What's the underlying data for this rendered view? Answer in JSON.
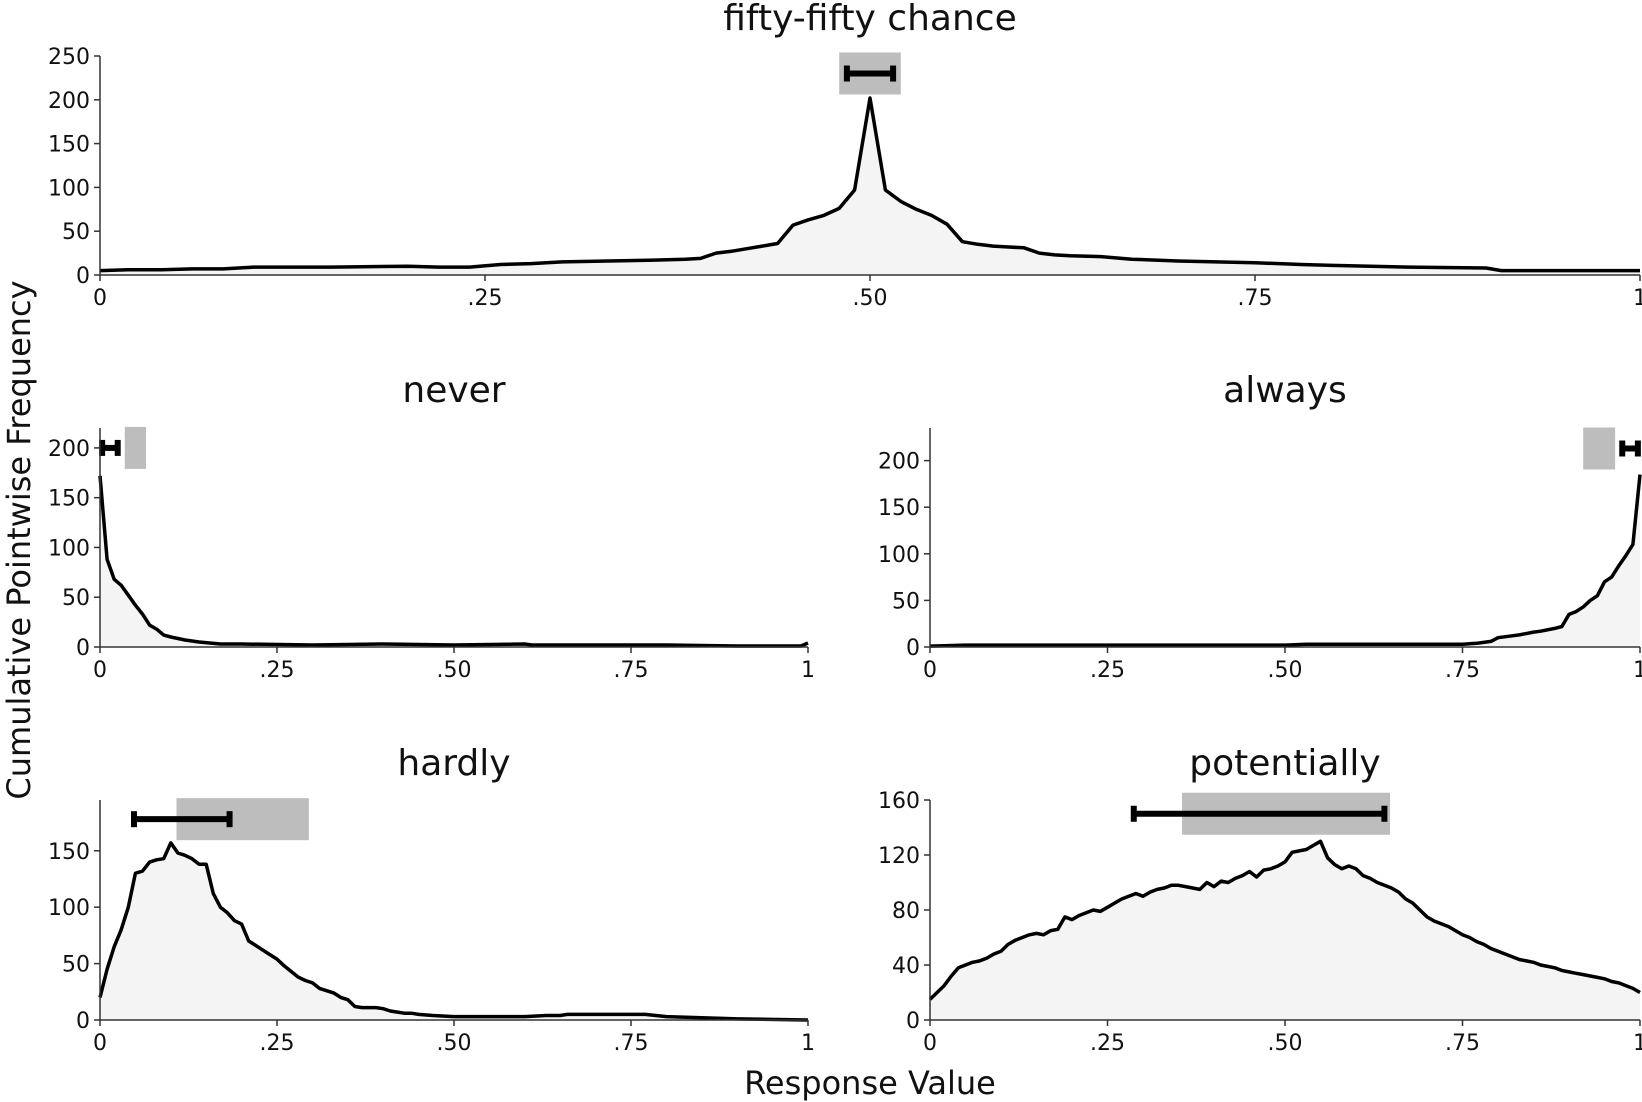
{
  "figure": {
    "ylabel": "Cumulative Pointwise Frequency",
    "xlabel": "Response Value"
  },
  "chart_data": [
    {
      "type": "area",
      "title": "fifty-fifty chance",
      "xlim": [
        0,
        1
      ],
      "ylim": [
        0,
        250
      ],
      "x_ticks": [
        0,
        0.25,
        0.5,
        0.75,
        1
      ],
      "x_tick_labels": [
        "0",
        ".25",
        ".50",
        ".75",
        "1"
      ],
      "y_ticks": [
        0,
        50,
        100,
        150,
        200,
        250
      ],
      "y_tick_labels": [
        "0",
        "50",
        "100",
        "150",
        "200",
        "250"
      ],
      "interval_band": [
        0.48,
        0.52
      ],
      "interval_bar": [
        0.485,
        0.515
      ],
      "interval_level": 230,
      "points": [
        [
          0,
          5
        ],
        [
          0.02,
          6
        ],
        [
          0.04,
          6
        ],
        [
          0.06,
          7
        ],
        [
          0.08,
          7
        ],
        [
          0.1,
          9
        ],
        [
          0.15,
          9
        ],
        [
          0.2,
          10
        ],
        [
          0.22,
          9
        ],
        [
          0.24,
          9
        ],
        [
          0.26,
          12
        ],
        [
          0.28,
          13
        ],
        [
          0.3,
          15
        ],
        [
          0.33,
          16
        ],
        [
          0.36,
          17
        ],
        [
          0.38,
          18
        ],
        [
          0.39,
          19
        ],
        [
          0.4,
          25
        ],
        [
          0.41,
          27
        ],
        [
          0.42,
          30
        ],
        [
          0.43,
          33
        ],
        [
          0.44,
          36
        ],
        [
          0.45,
          57
        ],
        [
          0.46,
          63
        ],
        [
          0.47,
          68
        ],
        [
          0.48,
          76
        ],
        [
          0.49,
          97
        ],
        [
          0.5,
          202
        ],
        [
          0.51,
          97
        ],
        [
          0.52,
          84
        ],
        [
          0.53,
          75
        ],
        [
          0.54,
          68
        ],
        [
          0.55,
          58
        ],
        [
          0.56,
          38
        ],
        [
          0.57,
          35
        ],
        [
          0.58,
          33
        ],
        [
          0.59,
          32
        ],
        [
          0.6,
          31
        ],
        [
          0.61,
          25
        ],
        [
          0.62,
          23
        ],
        [
          0.63,
          22
        ],
        [
          0.65,
          21
        ],
        [
          0.67,
          18
        ],
        [
          0.7,
          16
        ],
        [
          0.75,
          14
        ],
        [
          0.78,
          12
        ],
        [
          0.8,
          11
        ],
        [
          0.85,
          9
        ],
        [
          0.9,
          8
        ],
        [
          0.91,
          5
        ],
        [
          0.95,
          5
        ],
        [
          1,
          5
        ]
      ]
    },
    {
      "type": "area",
      "title": "never",
      "xlim": [
        0,
        1
      ],
      "ylim": [
        0,
        220
      ],
      "x_ticks": [
        0,
        0.25,
        0.5,
        0.75,
        1
      ],
      "x_tick_labels": [
        "0",
        ".25",
        ".50",
        ".75",
        "1"
      ],
      "y_ticks": [
        0,
        50,
        100,
        150,
        200
      ],
      "y_tick_labels": [
        "0",
        "50",
        "100",
        "150",
        "200"
      ],
      "interval_band": [
        0.035,
        0.065
      ],
      "interval_bar": [
        0.003,
        0.025
      ],
      "interval_level": 200,
      "points": [
        [
          0,
          172
        ],
        [
          0.01,
          88
        ],
        [
          0.02,
          68
        ],
        [
          0.03,
          62
        ],
        [
          0.04,
          52
        ],
        [
          0.05,
          42
        ],
        [
          0.06,
          33
        ],
        [
          0.07,
          22
        ],
        [
          0.08,
          18
        ],
        [
          0.09,
          12
        ],
        [
          0.1,
          10
        ],
        [
          0.12,
          7
        ],
        [
          0.14,
          5
        ],
        [
          0.17,
          3
        ],
        [
          0.2,
          3
        ],
        [
          0.3,
          2
        ],
        [
          0.4,
          3
        ],
        [
          0.5,
          2
        ],
        [
          0.6,
          3
        ],
        [
          0.61,
          2
        ],
        [
          0.7,
          2
        ],
        [
          0.8,
          2
        ],
        [
          0.9,
          1
        ],
        [
          0.99,
          1
        ],
        [
          1,
          4
        ]
      ]
    },
    {
      "type": "area",
      "title": "always",
      "xlim": [
        0,
        1
      ],
      "ylim": [
        0,
        235
      ],
      "x_ticks": [
        0,
        0.25,
        0.5,
        0.75,
        1
      ],
      "x_tick_labels": [
        "0",
        ".25",
        ".50",
        ".75",
        "1"
      ],
      "y_ticks": [
        0,
        50,
        100,
        150,
        200
      ],
      "y_tick_labels": [
        "0",
        "50",
        "100",
        "150",
        "200"
      ],
      "interval_band": [
        0.92,
        0.965
      ],
      "interval_bar": [
        0.975,
        0.997
      ],
      "interval_level": 213,
      "points": [
        [
          0,
          1
        ],
        [
          0.05,
          2
        ],
        [
          0.2,
          2
        ],
        [
          0.4,
          2
        ],
        [
          0.5,
          2
        ],
        [
          0.53,
          3
        ],
        [
          0.6,
          3
        ],
        [
          0.7,
          3
        ],
        [
          0.75,
          3
        ],
        [
          0.77,
          4
        ],
        [
          0.79,
          6
        ],
        [
          0.8,
          10
        ],
        [
          0.82,
          12
        ],
        [
          0.83,
          13
        ],
        [
          0.85,
          16
        ],
        [
          0.86,
          17
        ],
        [
          0.88,
          20
        ],
        [
          0.89,
          22
        ],
        [
          0.9,
          35
        ],
        [
          0.91,
          38
        ],
        [
          0.92,
          43
        ],
        [
          0.93,
          50
        ],
        [
          0.94,
          55
        ],
        [
          0.95,
          70
        ],
        [
          0.96,
          75
        ],
        [
          0.97,
          87
        ],
        [
          0.98,
          98
        ],
        [
          0.99,
          110
        ],
        [
          1,
          185
        ]
      ]
    },
    {
      "type": "area",
      "title": "hardly",
      "xlim": [
        0,
        1
      ],
      "ylim": [
        0,
        195
      ],
      "x_ticks": [
        0,
        0.25,
        0.5,
        0.75,
        1
      ],
      "x_tick_labels": [
        "0",
        ".25",
        ".50",
        ".75",
        "1"
      ],
      "y_ticks": [
        0,
        50,
        100,
        150
      ],
      "y_tick_labels": [
        "0",
        "50",
        "100",
        "150"
      ],
      "interval_band": [
        0.108,
        0.295
      ],
      "interval_bar": [
        0.048,
        0.183
      ],
      "interval_level": 178,
      "points": [
        [
          0,
          20
        ],
        [
          0.01,
          45
        ],
        [
          0.02,
          65
        ],
        [
          0.03,
          80
        ],
        [
          0.04,
          100
        ],
        [
          0.05,
          130
        ],
        [
          0.06,
          132
        ],
        [
          0.07,
          140
        ],
        [
          0.08,
          142
        ],
        [
          0.09,
          143
        ],
        [
          0.1,
          157
        ],
        [
          0.11,
          148
        ],
        [
          0.12,
          146
        ],
        [
          0.13,
          143
        ],
        [
          0.14,
          138
        ],
        [
          0.15,
          138
        ],
        [
          0.16,
          112
        ],
        [
          0.17,
          100
        ],
        [
          0.18,
          95
        ],
        [
          0.19,
          88
        ],
        [
          0.2,
          85
        ],
        [
          0.21,
          70
        ],
        [
          0.22,
          66
        ],
        [
          0.23,
          62
        ],
        [
          0.24,
          58
        ],
        [
          0.25,
          54
        ],
        [
          0.26,
          48
        ],
        [
          0.27,
          43
        ],
        [
          0.28,
          38
        ],
        [
          0.29,
          35
        ],
        [
          0.3,
          33
        ],
        [
          0.31,
          28
        ],
        [
          0.32,
          26
        ],
        [
          0.33,
          24
        ],
        [
          0.34,
          20
        ],
        [
          0.35,
          18
        ],
        [
          0.36,
          12
        ],
        [
          0.37,
          11
        ],
        [
          0.38,
          11
        ],
        [
          0.39,
          11
        ],
        [
          0.4,
          10
        ],
        [
          0.41,
          8
        ],
        [
          0.42,
          7
        ],
        [
          0.43,
          6
        ],
        [
          0.44,
          6
        ],
        [
          0.45,
          5
        ],
        [
          0.47,
          4
        ],
        [
          0.5,
          3
        ],
        [
          0.55,
          3
        ],
        [
          0.6,
          3
        ],
        [
          0.63,
          4
        ],
        [
          0.65,
          4
        ],
        [
          0.66,
          5
        ],
        [
          0.7,
          5
        ],
        [
          0.75,
          5
        ],
        [
          0.77,
          5
        ],
        [
          0.8,
          3
        ],
        [
          0.85,
          2
        ],
        [
          0.9,
          1
        ],
        [
          1,
          0
        ]
      ]
    },
    {
      "type": "area",
      "title": "potentially",
      "xlim": [
        0,
        1
      ],
      "ylim": [
        0,
        160
      ],
      "x_ticks": [
        0,
        0.25,
        0.5,
        0.75,
        1
      ],
      "x_tick_labels": [
        "0",
        ".25",
        ".50",
        ".75",
        "1"
      ],
      "y_ticks": [
        0,
        40,
        80,
        120,
        160
      ],
      "y_tick_labels": [
        "0",
        "40",
        "80",
        "120",
        "160"
      ],
      "interval_band": [
        0.355,
        0.648
      ],
      "interval_bar": [
        0.287,
        0.64
      ],
      "interval_level": 150,
      "points": [
        [
          0,
          15
        ],
        [
          0.01,
          20
        ],
        [
          0.02,
          25
        ],
        [
          0.03,
          32
        ],
        [
          0.04,
          38
        ],
        [
          0.05,
          40
        ],
        [
          0.06,
          42
        ],
        [
          0.07,
          43
        ],
        [
          0.08,
          45
        ],
        [
          0.09,
          48
        ],
        [
          0.1,
          50
        ],
        [
          0.11,
          55
        ],
        [
          0.12,
          58
        ],
        [
          0.13,
          60
        ],
        [
          0.14,
          62
        ],
        [
          0.15,
          63
        ],
        [
          0.16,
          62
        ],
        [
          0.17,
          65
        ],
        [
          0.18,
          66
        ],
        [
          0.19,
          75
        ],
        [
          0.2,
          73
        ],
        [
          0.21,
          76
        ],
        [
          0.22,
          78
        ],
        [
          0.23,
          80
        ],
        [
          0.24,
          79
        ],
        [
          0.25,
          82
        ],
        [
          0.26,
          85
        ],
        [
          0.27,
          88
        ],
        [
          0.28,
          90
        ],
        [
          0.29,
          92
        ],
        [
          0.3,
          90
        ],
        [
          0.31,
          93
        ],
        [
          0.32,
          95
        ],
        [
          0.33,
          96
        ],
        [
          0.34,
          98
        ],
        [
          0.35,
          98
        ],
        [
          0.36,
          97
        ],
        [
          0.37,
          96
        ],
        [
          0.38,
          95
        ],
        [
          0.39,
          100
        ],
        [
          0.4,
          97
        ],
        [
          0.41,
          101
        ],
        [
          0.42,
          100
        ],
        [
          0.43,
          103
        ],
        [
          0.44,
          105
        ],
        [
          0.45,
          108
        ],
        [
          0.46,
          104
        ],
        [
          0.47,
          109
        ],
        [
          0.48,
          110
        ],
        [
          0.49,
          112
        ],
        [
          0.5,
          115
        ],
        [
          0.51,
          122
        ],
        [
          0.52,
          123
        ],
        [
          0.53,
          124
        ],
        [
          0.54,
          127
        ],
        [
          0.55,
          130
        ],
        [
          0.56,
          118
        ],
        [
          0.57,
          113
        ],
        [
          0.58,
          110
        ],
        [
          0.59,
          112
        ],
        [
          0.6,
          110
        ],
        [
          0.61,
          105
        ],
        [
          0.62,
          103
        ],
        [
          0.63,
          100
        ],
        [
          0.64,
          98
        ],
        [
          0.65,
          96
        ],
        [
          0.66,
          93
        ],
        [
          0.67,
          88
        ],
        [
          0.68,
          85
        ],
        [
          0.69,
          80
        ],
        [
          0.7,
          75
        ],
        [
          0.71,
          72
        ],
        [
          0.72,
          70
        ],
        [
          0.73,
          68
        ],
        [
          0.74,
          65
        ],
        [
          0.75,
          62
        ],
        [
          0.76,
          60
        ],
        [
          0.77,
          57
        ],
        [
          0.78,
          55
        ],
        [
          0.79,
          52
        ],
        [
          0.8,
          50
        ],
        [
          0.81,
          48
        ],
        [
          0.82,
          46
        ],
        [
          0.83,
          44
        ],
        [
          0.84,
          43
        ],
        [
          0.85,
          42
        ],
        [
          0.86,
          40
        ],
        [
          0.87,
          39
        ],
        [
          0.88,
          38
        ],
        [
          0.89,
          36
        ],
        [
          0.9,
          35
        ],
        [
          0.91,
          34
        ],
        [
          0.92,
          33
        ],
        [
          0.93,
          32
        ],
        [
          0.94,
          31
        ],
        [
          0.95,
          30
        ],
        [
          0.96,
          28
        ],
        [
          0.97,
          27
        ],
        [
          0.98,
          25
        ],
        [
          0.99,
          23
        ],
        [
          1,
          20
        ]
      ]
    }
  ]
}
